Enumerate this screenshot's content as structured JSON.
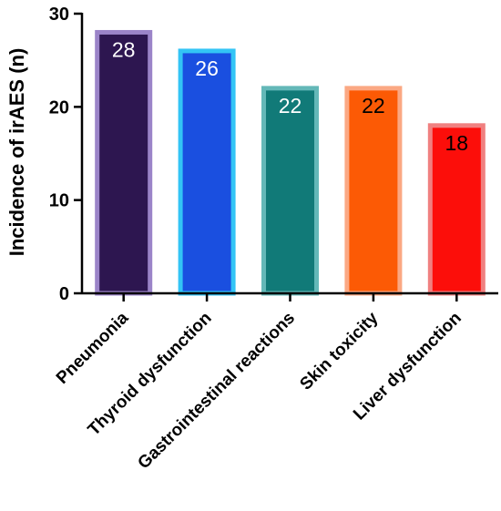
{
  "chart_data": {
    "type": "bar",
    "title": "",
    "xlabel": "",
    "ylabel": "Incidence of irAES (n)",
    "ylim": [
      0,
      30
    ],
    "yticks": [
      0,
      10,
      20,
      30
    ],
    "grid": false,
    "categories": [
      "Pneumonia",
      "Thyroid dysfunction",
      "Gastrointestinal reactions",
      "Skin toxicity",
      "Liver dysfunction"
    ],
    "values": [
      28,
      26,
      22,
      22,
      18
    ],
    "colors": {
      "fill": [
        "#2d1650",
        "#1a4fe0",
        "#117a78",
        "#fc5a05",
        "#fc0e0a"
      ],
      "border": [
        "#9b84c8",
        "#33c4f5",
        "#64b8b8",
        "#fba883",
        "#f08080"
      ],
      "label_text": [
        "#ffffff",
        "#ffffff",
        "#ffffff",
        "#000000",
        "#000000"
      ]
    }
  }
}
